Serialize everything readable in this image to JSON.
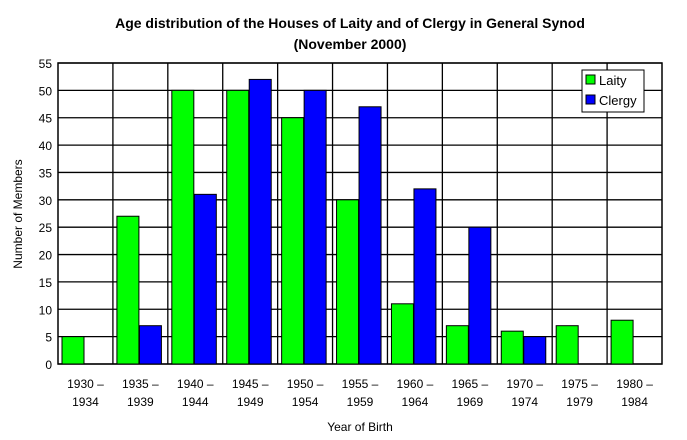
{
  "chart_data": {
    "type": "bar",
    "title": "Age distribution of the Houses of Laity and of Clergy in General Synod",
    "subtitle": "(November 2000)",
    "xlabel": "Year of Birth",
    "ylabel": "Number of Members",
    "ylim": [
      0,
      55
    ],
    "yticks": [
      0,
      5,
      10,
      15,
      20,
      25,
      30,
      35,
      40,
      45,
      50,
      55
    ],
    "grid": true,
    "legend_position": "top-right",
    "categories": [
      [
        "1930 –",
        "1934"
      ],
      [
        "1935 –",
        "1939"
      ],
      [
        "1940 –",
        "1944"
      ],
      [
        "1945 –",
        "1949"
      ],
      [
        "1950 –",
        "1954"
      ],
      [
        "1955 –",
        "1959"
      ],
      [
        "1960 –",
        "1964"
      ],
      [
        "1965 –",
        "1969"
      ],
      [
        "1970 –",
        "1974"
      ],
      [
        "1975 –",
        "1979"
      ],
      [
        "1980 –",
        "1984"
      ]
    ],
    "series": [
      {
        "name": "Laity",
        "color": "#00ff00",
        "values": [
          5,
          27,
          50,
          50,
          45,
          30,
          11,
          7,
          6,
          7,
          8
        ]
      },
      {
        "name": "Clergy",
        "color": "#0000ff",
        "values": [
          0,
          7,
          31,
          52,
          50,
          47,
          32,
          25,
          5,
          0,
          0
        ]
      }
    ]
  }
}
